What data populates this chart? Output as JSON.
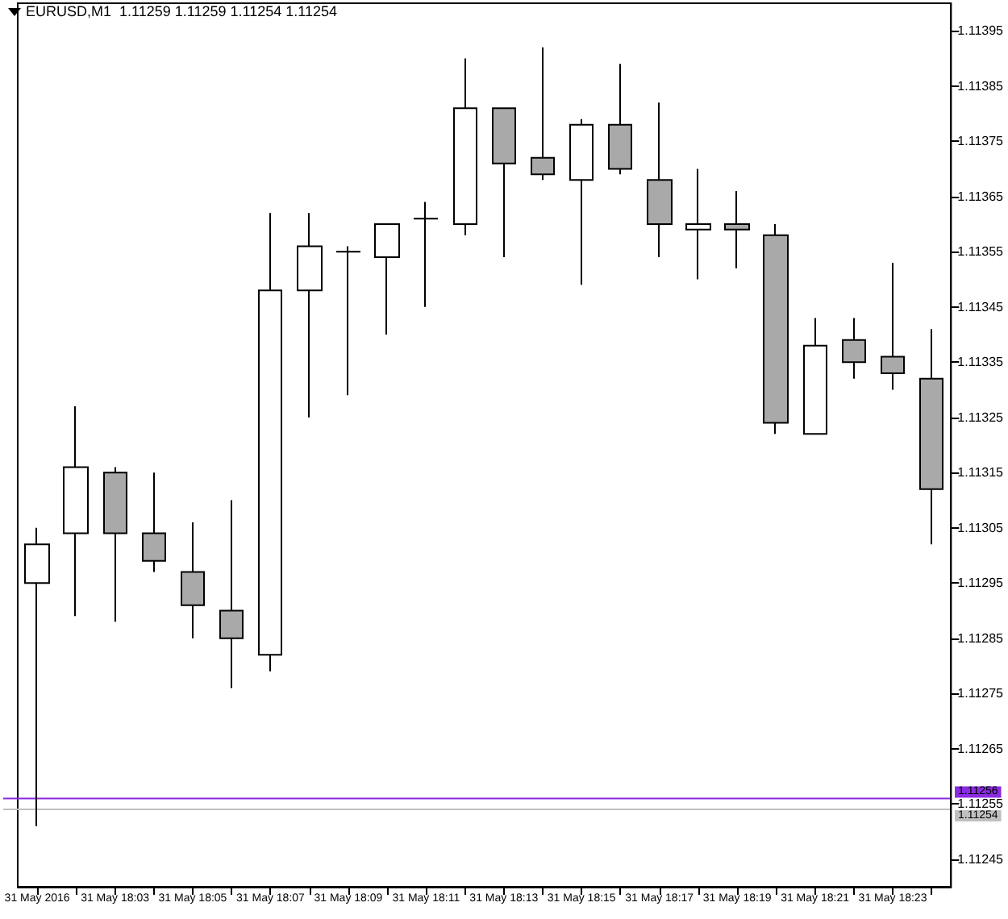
{
  "chart_data": {
    "type": "candlestick",
    "title": "EURUSD,M1  1.11259 1.11259 1.11254 1.11254",
    "categories": [
      "31 May 2016",
      null,
      "31 May 18:03",
      null,
      "31 May 18:05",
      null,
      "31 May 18:07",
      null,
      "31 May 18:09",
      null,
      "31 May 18:11",
      null,
      "31 May 18:13",
      null,
      "31 May 18:15",
      null,
      "31 May 18:17",
      null,
      "31 May 18:19",
      null,
      "31 May 18:21",
      null,
      "31 May 18:23",
      null
    ],
    "ohlc": [
      [
        1.11295,
        1.11305,
        1.11251,
        1.11302
      ],
      [
        1.11304,
        1.11327,
        1.11289,
        1.11316
      ],
      [
        1.11315,
        1.11316,
        1.11288,
        1.11304
      ],
      [
        1.11304,
        1.11315,
        1.11297,
        1.11299
      ],
      [
        1.11297,
        1.11306,
        1.11285,
        1.11291
      ],
      [
        1.1129,
        1.1131,
        1.11276,
        1.11285
      ],
      [
        1.11282,
        1.11362,
        1.11279,
        1.11348
      ],
      [
        1.11348,
        1.11362,
        1.11325,
        1.11356
      ],
      [
        1.11355,
        1.11356,
        1.11329,
        1.11355
      ],
      [
        1.11354,
        1.1136,
        1.1134,
        1.1136
      ],
      [
        1.11361,
        1.11364,
        1.11345,
        1.11361
      ],
      [
        1.1136,
        1.1139,
        1.11358,
        1.11381
      ],
      [
        1.11381,
        1.11381,
        1.11354,
        1.11371
      ],
      [
        1.11372,
        1.11392,
        1.11368,
        1.11369
      ],
      [
        1.11368,
        1.11379,
        1.11349,
        1.11378
      ],
      [
        1.11378,
        1.11389,
        1.11369,
        1.1137
      ],
      [
        1.11368,
        1.11382,
        1.11354,
        1.1136
      ],
      [
        1.11359,
        1.1137,
        1.1135,
        1.1136
      ],
      [
        1.1136,
        1.11366,
        1.11352,
        1.11359
      ],
      [
        1.11358,
        1.1136,
        1.11322,
        1.11324
      ],
      [
        1.11322,
        1.11343,
        1.11322,
        1.11338
      ],
      [
        1.11339,
        1.11343,
        1.11332,
        1.11335
      ],
      [
        1.11336,
        1.11353,
        1.1133,
        1.11333
      ],
      [
        1.11332,
        1.11341,
        1.11302,
        1.11312
      ]
    ],
    "colors": [
      "#ffffff",
      "#ffffff",
      "#a9a9a9",
      "#a9a9a9",
      "#a9a9a9",
      "#a9a9a9",
      "#ffffff",
      "#ffffff",
      "#000000",
      "#ffffff",
      "#000000",
      "#ffffff",
      "#a9a9a9",
      "#a9a9a9",
      "#ffffff",
      "#a9a9a9",
      "#a9a9a9",
      "#ffffff",
      "#a9a9a9",
      "#a9a9a9",
      "#ffffff",
      "#a9a9a9",
      "#a9a9a9",
      "#a9a9a9"
    ],
    "ylim": [
      1.1124,
      1.114
    ],
    "yticks": [
      1.11245,
      1.11255,
      1.11265,
      1.11275,
      1.11285,
      1.11295,
      1.11305,
      1.11315,
      1.11325,
      1.11335,
      1.11345,
      1.11355,
      1.11365,
      1.11375,
      1.11385,
      1.11395
    ],
    "ref_lines": [
      {
        "axis": "y",
        "value": 1.11256,
        "label": "1.11256",
        "color": "#8a2be2"
      },
      {
        "axis": "y",
        "value": 1.11254,
        "label": "1.11254",
        "color": "#c0c0c0"
      }
    ],
    "grid": false
  }
}
